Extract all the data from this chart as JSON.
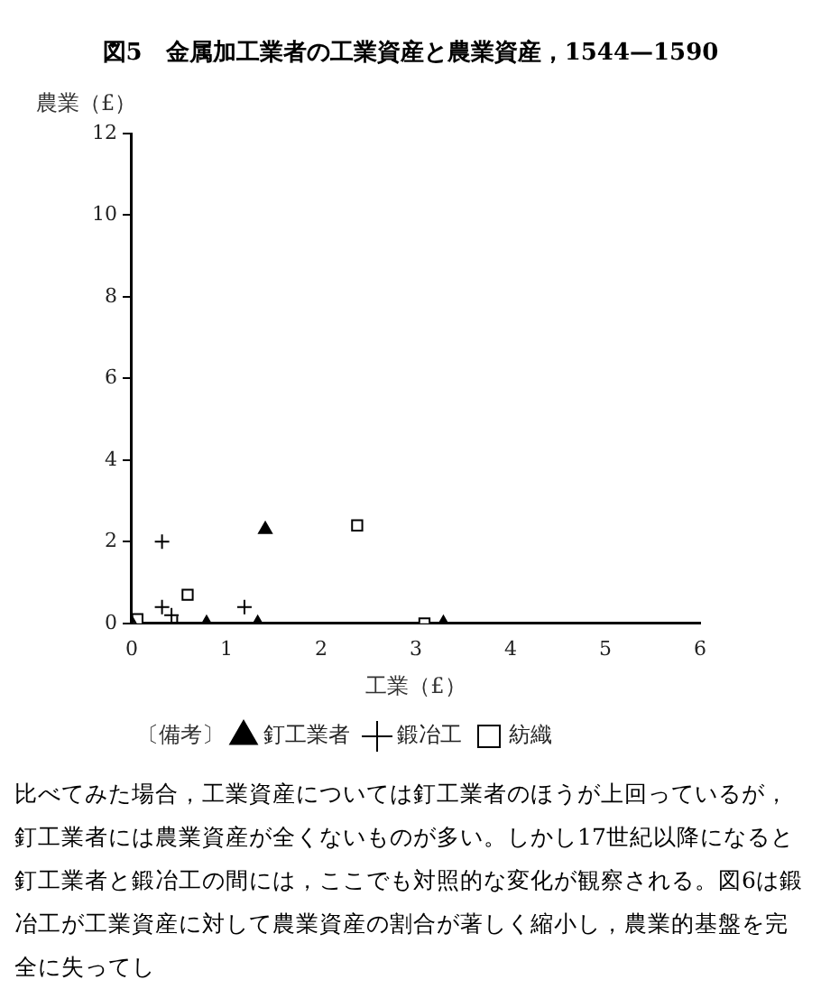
{
  "chart_data": {
    "type": "scatter",
    "title": "図5　金属加工業者の工業資産と農業資産，1544—1590",
    "xlabel": "工業（£）",
    "ylabel": "農業（£）",
    "legend_title": "〔備考〕",
    "xlim": [
      0,
      6
    ],
    "ylim": [
      0,
      12
    ],
    "xticks": [
      0,
      1,
      2,
      3,
      4,
      5,
      6
    ],
    "yticks": [
      0,
      2,
      4,
      6,
      8,
      10,
      12
    ],
    "legend": "bottom",
    "grid": false,
    "series": [
      {
        "name": "釘工業者",
        "color": "#000000",
        "marker": "triangle",
        "x": [
          0,
          0.79,
          1.33,
          1.41,
          3.29
        ],
        "values": [
          0,
          0,
          0,
          2.3,
          0
        ]
      },
      {
        "name": "鍛冶工",
        "color": "#000000",
        "marker": "cross",
        "x": [
          0.32,
          0.32,
          0.42,
          0.48,
          1.19
        ],
        "values": [
          2,
          0.4,
          0.2,
          0,
          0.4
        ]
      },
      {
        "name": "紡織",
        "color": "#000000",
        "marker": "square",
        "x": [
          0.06,
          0.59,
          2.38,
          3.09
        ],
        "values": [
          0.1,
          0.7,
          2.4,
          0
        ]
      }
    ],
    "annotations": [
      "比べてみた場合，工業資産については釘工業者のほうが上回っているが，釘工業者には農業資産が全くないものが多い。しかし17世紀以降になると釘工業者と鍛冶工の間には，ここでも対照的な変化が観察される。図6は鍛冶工が工業資産に対して農業資産の割合が著しく縮小し，農業的基盤を完全に失ってし"
    ]
  }
}
